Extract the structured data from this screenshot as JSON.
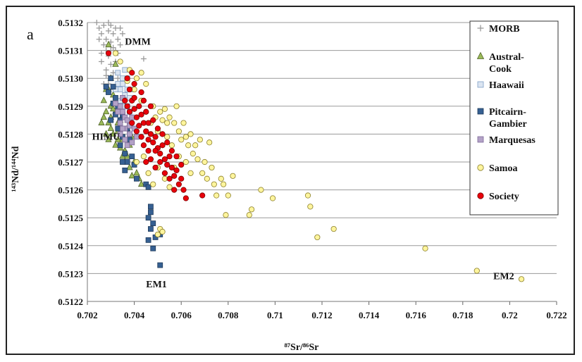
{
  "chart_data": {
    "type": "scatter",
    "panel_label": "a",
    "xlabel": "⁸⁷Sr/⁸⁶Sr",
    "ylabel": "¹⁴³Nd/¹⁴⁴Nd",
    "xlim": [
      0.702,
      0.722
    ],
    "ylim": [
      0.5122,
      0.5132
    ],
    "x_ticks": [
      "0.702",
      "0.704",
      "0.706",
      "0.708",
      "0.71",
      "0.712",
      "0.714",
      "0.716",
      "0.718",
      "0.72",
      "0.722"
    ],
    "y_ticks": [
      "0.5122",
      "0.5123",
      "0.5124",
      "0.5125",
      "0.5126",
      "0.5127",
      "0.5128",
      "0.5129",
      "0.5130",
      "0.5131",
      "0.5132"
    ],
    "grid": "horizontal",
    "legend_position": "right",
    "annotations": [
      {
        "text": "DMM",
        "x": 0.7036,
        "y": 0.51312
      },
      {
        "text": "HIMU",
        "x": 0.7022,
        "y": 0.51278
      },
      {
        "text": "EM1",
        "x": 0.7045,
        "y": 0.51225
      },
      {
        "text": "EM2",
        "x": 0.7193,
        "y": 0.51228
      }
    ],
    "series": [
      {
        "name": "MORB",
        "marker": "plus",
        "color": "#9a9a9a",
        "points": [
          [
            0.7024,
            0.5132
          ],
          [
            0.7025,
            0.51318
          ],
          [
            0.7026,
            0.51316
          ],
          [
            0.7027,
            0.51319
          ],
          [
            0.7028,
            0.51314
          ],
          [
            0.7029,
            0.51317
          ],
          [
            0.703,
            0.51313
          ],
          [
            0.703,
            0.51319
          ],
          [
            0.7031,
            0.51311
          ],
          [
            0.7031,
            0.51316
          ],
          [
            0.7032,
            0.51318
          ],
          [
            0.7032,
            0.5131
          ],
          [
            0.7033,
            0.51314
          ],
          [
            0.7028,
            0.5131
          ],
          [
            0.7027,
            0.51312
          ],
          [
            0.7029,
            0.51308
          ],
          [
            0.703,
            0.51305
          ],
          [
            0.7031,
            0.51302
          ],
          [
            0.7028,
            0.51303
          ],
          [
            0.7026,
            0.51306
          ],
          [
            0.7032,
            0.51306
          ],
          [
            0.7033,
            0.51309
          ],
          [
            0.7034,
            0.51312
          ],
          [
            0.7025,
            0.51314
          ],
          [
            0.7029,
            0.51298
          ],
          [
            0.7031,
            0.51296
          ],
          [
            0.7027,
            0.51298
          ],
          [
            0.7033,
            0.513
          ],
          [
            0.7035,
            0.51316
          ],
          [
            0.7026,
            0.51309
          ],
          [
            0.703,
            0.5131
          ],
          [
            0.7029,
            0.5132
          ],
          [
            0.7034,
            0.51318
          ],
          [
            0.7044,
            0.51307
          ],
          [
            0.703,
            0.5129
          ],
          [
            0.7028,
            0.51301
          ]
        ]
      },
      {
        "name": "Austral-Cook",
        "marker": "triangle",
        "color": "#9bbb59",
        "points": [
          [
            0.7029,
            0.51296
          ],
          [
            0.7031,
            0.51294
          ],
          [
            0.703,
            0.5129
          ],
          [
            0.7028,
            0.51288
          ],
          [
            0.7027,
            0.51286
          ],
          [
            0.7029,
            0.51284
          ],
          [
            0.703,
            0.51282
          ],
          [
            0.7028,
            0.5128
          ],
          [
            0.7029,
            0.51278
          ],
          [
            0.7031,
            0.5128
          ],
          [
            0.7032,
            0.51276
          ],
          [
            0.7033,
            0.51278
          ],
          [
            0.7034,
            0.51275
          ],
          [
            0.7035,
            0.51278
          ],
          [
            0.7036,
            0.51274
          ],
          [
            0.7037,
            0.51272
          ],
          [
            0.7038,
            0.51276
          ],
          [
            0.7036,
            0.5127
          ],
          [
            0.7038,
            0.51268
          ],
          [
            0.704,
            0.5127
          ],
          [
            0.7041,
            0.51266
          ],
          [
            0.7042,
            0.51264
          ],
          [
            0.7043,
            0.51262
          ],
          [
            0.7039,
            0.51265
          ],
          [
            0.703,
            0.51286
          ],
          [
            0.7032,
            0.51288
          ],
          [
            0.7033,
            0.51284
          ],
          [
            0.7027,
            0.51292
          ],
          [
            0.7026,
            0.51284
          ],
          [
            0.7028,
            0.51296
          ],
          [
            0.703,
            0.513
          ],
          [
            0.7032,
            0.51305
          ],
          [
            0.7029,
            0.51312
          ],
          [
            0.7034,
            0.51285
          ],
          [
            0.7035,
            0.5129
          ],
          [
            0.7031,
            0.51289
          ],
          [
            0.7033,
            0.51281
          ],
          [
            0.7037,
            0.51282
          ],
          [
            0.7039,
            0.51279
          ],
          [
            0.7035,
            0.51272
          ]
        ]
      },
      {
        "name": "Haawaii",
        "marker": "square",
        "color": "#dbe5f1",
        "points": [
          [
            0.7034,
            0.51296
          ],
          [
            0.7035,
            0.51298
          ],
          [
            0.7036,
            0.51294
          ],
          [
            0.7037,
            0.51296
          ],
          [
            0.7035,
            0.513
          ],
          [
            0.7033,
            0.51298
          ],
          [
            0.7036,
            0.5129
          ],
          [
            0.7038,
            0.51293
          ],
          [
            0.7034,
            0.51292
          ],
          [
            0.7037,
            0.513
          ],
          [
            0.7039,
            0.51296
          ],
          [
            0.7033,
            0.51302
          ],
          [
            0.7036,
            0.51303
          ],
          [
            0.7032,
            0.51296
          ],
          [
            0.7038,
            0.51288
          ]
        ]
      },
      {
        "name": "Pitcairn-Gambier",
        "marker": "square",
        "color": "#366092",
        "points": [
          [
            0.703,
            0.513
          ],
          [
            0.7031,
            0.51297
          ],
          [
            0.7029,
            0.51295
          ],
          [
            0.7032,
            0.51293
          ],
          [
            0.7033,
            0.5129
          ],
          [
            0.7032,
            0.51287
          ],
          [
            0.7034,
            0.51285
          ],
          [
            0.7033,
            0.51282
          ],
          [
            0.7035,
            0.51279
          ],
          [
            0.7034,
            0.51276
          ],
          [
            0.7036,
            0.51273
          ],
          [
            0.7037,
            0.5127
          ],
          [
            0.7036,
            0.51267
          ],
          [
            0.7038,
            0.51278
          ],
          [
            0.7035,
            0.51287
          ],
          [
            0.7031,
            0.51291
          ],
          [
            0.703,
            0.51285
          ],
          [
            0.7037,
            0.51282
          ],
          [
            0.7039,
            0.51272
          ],
          [
            0.704,
            0.51269
          ],
          [
            0.7041,
            0.51264
          ],
          [
            0.7045,
            0.51262
          ],
          [
            0.7046,
            0.51261
          ],
          [
            0.7047,
            0.51254
          ],
          [
            0.7047,
            0.51252
          ],
          [
            0.7046,
            0.5125
          ],
          [
            0.7048,
            0.51248
          ],
          [
            0.7047,
            0.51246
          ],
          [
            0.7049,
            0.51243
          ],
          [
            0.7048,
            0.51239
          ],
          [
            0.7046,
            0.51242
          ],
          [
            0.7051,
            0.51244
          ],
          [
            0.7051,
            0.51233
          ],
          [
            0.7028,
            0.51297
          ],
          [
            0.7035,
            0.5127
          ]
        ]
      },
      {
        "name": "Marquesas",
        "marker": "square",
        "color": "#b3a2c7",
        "points": [
          [
            0.7034,
            0.5129
          ],
          [
            0.7035,
            0.51288
          ],
          [
            0.7036,
            0.51286
          ],
          [
            0.7034,
            0.51284
          ],
          [
            0.7036,
            0.51282
          ],
          [
            0.7037,
            0.51285
          ],
          [
            0.7035,
            0.51282
          ],
          [
            0.7038,
            0.51283
          ],
          [
            0.7037,
            0.5129
          ],
          [
            0.7033,
            0.51288
          ],
          [
            0.7039,
            0.51286
          ],
          [
            0.7036,
            0.51278
          ],
          [
            0.7038,
            0.5128
          ],
          [
            0.704,
            0.51282
          ],
          [
            0.7034,
            0.5128
          ],
          [
            0.7037,
            0.51276
          ],
          [
            0.7039,
            0.51277
          ],
          [
            0.7041,
            0.51279
          ],
          [
            0.7035,
            0.51293
          ],
          [
            0.7032,
            0.51291
          ]
        ]
      },
      {
        "name": "Samoa",
        "marker": "circle",
        "color": "#fff59d",
        "points": [
          [
            0.7037,
            0.51299
          ],
          [
            0.704,
            0.51296
          ],
          [
            0.7043,
            0.51292
          ],
          [
            0.7045,
            0.51288
          ],
          [
            0.7047,
            0.51284
          ],
          [
            0.7048,
            0.5129
          ],
          [
            0.7049,
            0.51286
          ],
          [
            0.7051,
            0.51288
          ],
          [
            0.7052,
            0.51285
          ],
          [
            0.7053,
            0.51289
          ],
          [
            0.7054,
            0.51284
          ],
          [
            0.7055,
            0.51286
          ],
          [
            0.7057,
            0.51284
          ],
          [
            0.7059,
            0.51281
          ],
          [
            0.706,
            0.51278
          ],
          [
            0.7061,
            0.51284
          ],
          [
            0.7062,
            0.51279
          ],
          [
            0.7063,
            0.51276
          ],
          [
            0.7064,
            0.5128
          ],
          [
            0.7065,
            0.51273
          ],
          [
            0.7066,
            0.51276
          ],
          [
            0.7067,
            0.51271
          ],
          [
            0.7068,
            0.51278
          ],
          [
            0.7069,
            0.51266
          ],
          [
            0.707,
            0.5127
          ],
          [
            0.7071,
            0.51264
          ],
          [
            0.7072,
            0.51277
          ],
          [
            0.7073,
            0.51268
          ],
          [
            0.7074,
            0.51262
          ],
          [
            0.7075,
            0.51258
          ],
          [
            0.7077,
            0.51264
          ],
          [
            0.7078,
            0.51262
          ],
          [
            0.7079,
            0.51251
          ],
          [
            0.708,
            0.51258
          ],
          [
            0.7082,
            0.51265
          ],
          [
            0.7089,
            0.51251
          ],
          [
            0.709,
            0.51253
          ],
          [
            0.7094,
            0.5126
          ],
          [
            0.7099,
            0.51257
          ],
          [
            0.7114,
            0.51258
          ],
          [
            0.7115,
            0.51254
          ],
          [
            0.7118,
            0.51243
          ],
          [
            0.7125,
            0.51246
          ],
          [
            0.7164,
            0.51239
          ],
          [
            0.7186,
            0.51231
          ],
          [
            0.7205,
            0.51228
          ],
          [
            0.705,
            0.51244
          ],
          [
            0.7051,
            0.51246
          ],
          [
            0.7052,
            0.51245
          ],
          [
            0.7041,
            0.5127
          ],
          [
            0.7044,
            0.51272
          ],
          [
            0.7046,
            0.51266
          ],
          [
            0.7048,
            0.51262
          ],
          [
            0.705,
            0.51268
          ],
          [
            0.7053,
            0.51264
          ],
          [
            0.7055,
            0.51261
          ],
          [
            0.7057,
            0.51268
          ],
          [
            0.7059,
            0.51272
          ],
          [
            0.7056,
            0.51276
          ],
          [
            0.7058,
            0.5129
          ],
          [
            0.7045,
            0.51298
          ],
          [
            0.7043,
            0.51302
          ],
          [
            0.7041,
            0.513
          ],
          [
            0.7038,
            0.51303
          ],
          [
            0.7032,
            0.51309
          ],
          [
            0.7034,
            0.51306
          ],
          [
            0.705,
            0.51281
          ],
          [
            0.7054,
            0.51279
          ],
          [
            0.7062,
            0.5127
          ],
          [
            0.7064,
            0.51266
          ]
        ]
      },
      {
        "name": "Society",
        "marker": "circle",
        "color": "#e8000b",
        "points": [
          [
            0.7036,
            0.51292
          ],
          [
            0.7037,
            0.5129
          ],
          [
            0.7038,
            0.51288
          ],
          [
            0.7039,
            0.51292
          ],
          [
            0.704,
            0.51289
          ],
          [
            0.7041,
            0.51286
          ],
          [
            0.7042,
            0.5129
          ],
          [
            0.7043,
            0.51287
          ],
          [
            0.7044,
            0.51284
          ],
          [
            0.7045,
            0.51281
          ],
          [
            0.7046,
            0.51284
          ],
          [
            0.7047,
            0.5128
          ],
          [
            0.7048,
            0.51277
          ],
          [
            0.7049,
            0.51279
          ],
          [
            0.705,
            0.51275
          ],
          [
            0.7051,
            0.51273
          ],
          [
            0.7052,
            0.51276
          ],
          [
            0.7053,
            0.51271
          ],
          [
            0.7054,
            0.51269
          ],
          [
            0.7055,
            0.51272
          ],
          [
            0.7056,
            0.51268
          ],
          [
            0.7057,
            0.51265
          ],
          [
            0.7058,
            0.51267
          ],
          [
            0.7059,
            0.51262
          ],
          [
            0.706,
            0.51264
          ],
          [
            0.7061,
            0.5126
          ],
          [
            0.7062,
            0.51257
          ],
          [
            0.7069,
            0.51258
          ],
          [
            0.7038,
            0.51296
          ],
          [
            0.704,
            0.51298
          ],
          [
            0.7039,
            0.51284
          ],
          [
            0.7041,
            0.51281
          ],
          [
            0.7043,
            0.51279
          ],
          [
            0.7044,
            0.51276
          ],
          [
            0.7046,
            0.51274
          ],
          [
            0.7047,
            0.51271
          ],
          [
            0.7049,
            0.51268
          ],
          [
            0.705,
            0.51282
          ],
          [
            0.7048,
            0.51285
          ],
          [
            0.7045,
            0.51288
          ],
          [
            0.7042,
            0.51283
          ],
          [
            0.7044,
            0.51292
          ],
          [
            0.7046,
            0.51278
          ],
          [
            0.7052,
            0.5128
          ],
          [
            0.7054,
            0.51277
          ],
          [
            0.7056,
            0.51274
          ],
          [
            0.7058,
            0.51272
          ],
          [
            0.706,
            0.51269
          ],
          [
            0.7037,
            0.513
          ],
          [
            0.7039,
            0.51302
          ],
          [
            0.7029,
            0.51309
          ],
          [
            0.7053,
            0.51266
          ],
          [
            0.7055,
            0.51264
          ],
          [
            0.7057,
            0.5126
          ],
          [
            0.7047,
            0.5129
          ],
          [
            0.7043,
            0.51295
          ],
          [
            0.704,
            0.51293
          ],
          [
            0.7051,
            0.5127
          ],
          [
            0.7049,
            0.51274
          ],
          [
            0.7045,
            0.5127
          ]
        ]
      }
    ]
  }
}
